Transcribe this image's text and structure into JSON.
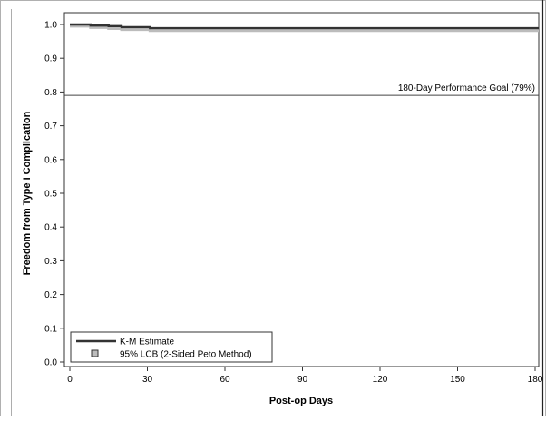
{
  "chart_data": {
    "type": "line",
    "title": "",
    "xlabel": "Post-op Days",
    "ylabel": "Freedom from Type I Complication",
    "xlim": [
      0,
      180
    ],
    "ylim": [
      0,
      1.0
    ],
    "xticks": [
      0,
      30,
      60,
      90,
      120,
      150,
      180
    ],
    "yticks": [
      "0.0",
      "0.1",
      "0.2",
      "0.3",
      "0.4",
      "0.5",
      "0.6",
      "0.7",
      "0.8",
      "0.9",
      "1.0"
    ],
    "grid": false,
    "legend_position": "bottom-left",
    "series": [
      {
        "name": "K-M Estimate",
        "style": "step",
        "color": "#333333",
        "x": [
          0,
          8,
          15,
          20,
          31,
          182
        ],
        "y": [
          1.0,
          0.997,
          0.995,
          0.992,
          0.989,
          0.989
        ]
      },
      {
        "name": "95% LCB (2-Sided Peto Method)",
        "style": "step-band",
        "color": "#bcbcbc",
        "x": [
          0,
          8,
          15,
          20,
          31,
          182
        ],
        "y": [
          0.995,
          0.991,
          0.988,
          0.985,
          0.982,
          0.982
        ]
      }
    ],
    "reference_lines": [
      {
        "y": 0.79,
        "label": "180-Day Performance Goal (79%)"
      }
    ]
  }
}
